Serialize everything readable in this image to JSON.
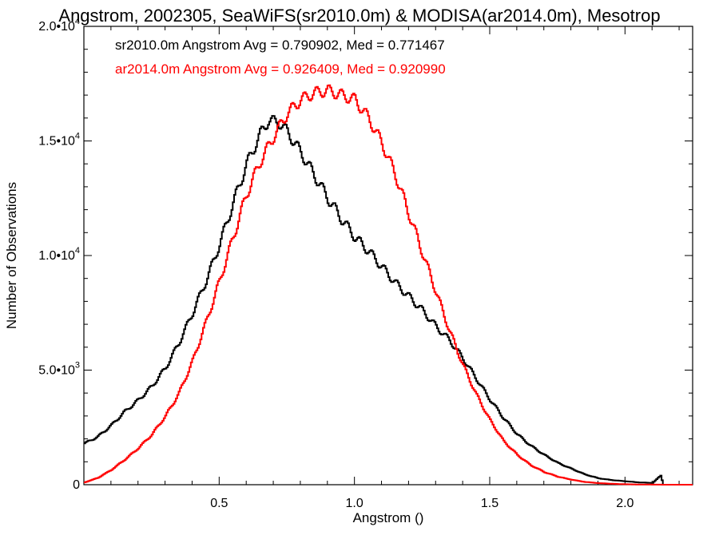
{
  "chart_data": {
    "type": "line",
    "title": "Angstrom, 2002305, SeaWiFS(sr2010.0m) & MODISA(ar2014.0m), Mesotrop",
    "xlabel": "Angstrom ()",
    "ylabel": "Number of Observations",
    "xlim": [
      0.0,
      2.25
    ],
    "ylim": [
      0,
      20000
    ],
    "x_ticks": [
      {
        "value": 0.5,
        "label": "0.5"
      },
      {
        "value": 1.0,
        "label": "1.0"
      },
      {
        "value": 1.5,
        "label": "1.5"
      },
      {
        "value": 2.0,
        "label": "2.0"
      }
    ],
    "y_ticks": [
      {
        "value": 0,
        "mant": "0",
        "exp": ""
      },
      {
        "value": 5000,
        "mant": "5.0•10",
        "exp": "3"
      },
      {
        "value": 10000,
        "mant": "1.0•10",
        "exp": "4"
      },
      {
        "value": 15000,
        "mant": "1.5•10",
        "exp": "4"
      },
      {
        "value": 20000,
        "mant": "2.0•10",
        "exp": "4"
      }
    ],
    "grid": false,
    "series": [
      {
        "name": "sr2010.0m",
        "color": "#000000",
        "stats_text": "sr2010.0m Angstrom Avg = 0.790902, Med = 0.771467",
        "x": [
          0.0,
          0.05,
          0.1,
          0.15,
          0.2,
          0.25,
          0.3,
          0.35,
          0.4,
          0.45,
          0.5,
          0.55,
          0.6,
          0.65,
          0.68,
          0.72,
          0.75,
          0.8,
          0.85,
          0.9,
          0.95,
          1.0,
          1.05,
          1.1,
          1.15,
          1.2,
          1.25,
          1.3,
          1.35,
          1.4,
          1.45,
          1.5,
          1.55,
          1.6,
          1.65,
          1.7,
          1.75,
          1.8,
          1.85,
          1.9,
          1.95,
          2.0,
          2.05,
          2.1,
          2.13,
          2.14,
          2.15,
          2.2,
          2.25
        ],
        "y": [
          1800,
          2100,
          2600,
          3200,
          3700,
          4300,
          5100,
          6200,
          7500,
          8900,
          10500,
          12300,
          14000,
          15300,
          15900,
          15800,
          15400,
          14500,
          13500,
          12500,
          11600,
          10800,
          10200,
          9500,
          8800,
          8200,
          7600,
          6900,
          6300,
          5500,
          4600,
          3700,
          2900,
          2200,
          1700,
          1300,
          950,
          700,
          450,
          280,
          200,
          150,
          100,
          80,
          400,
          0,
          0,
          0,
          0
        ]
      },
      {
        "name": "ar2014.0m",
        "color": "#ff0000",
        "stats_text": "ar2014.0m Angstrom Avg = 0.926409, Med = 0.920990",
        "x": [
          0.0,
          0.05,
          0.1,
          0.15,
          0.2,
          0.25,
          0.3,
          0.35,
          0.4,
          0.45,
          0.5,
          0.55,
          0.6,
          0.65,
          0.7,
          0.75,
          0.8,
          0.85,
          0.9,
          0.95,
          1.0,
          1.05,
          1.1,
          1.15,
          1.2,
          1.25,
          1.3,
          1.35,
          1.4,
          1.45,
          1.5,
          1.55,
          1.6,
          1.65,
          1.7,
          1.75,
          1.8,
          1.85,
          1.9,
          1.95,
          2.0,
          2.05,
          2.1,
          2.15,
          2.2,
          2.25
        ],
        "y": [
          100,
          300,
          650,
          1100,
          1600,
          2200,
          3000,
          4000,
          5400,
          7100,
          8900,
          10800,
          12700,
          14100,
          15200,
          16200,
          16800,
          17100,
          17200,
          17000,
          16800,
          16000,
          14900,
          13500,
          11800,
          10100,
          8400,
          6700,
          5200,
          3900,
          2800,
          1900,
          1300,
          850,
          550,
          350,
          220,
          120,
          70,
          40,
          20,
          10,
          5,
          0,
          0,
          0
        ]
      }
    ]
  }
}
